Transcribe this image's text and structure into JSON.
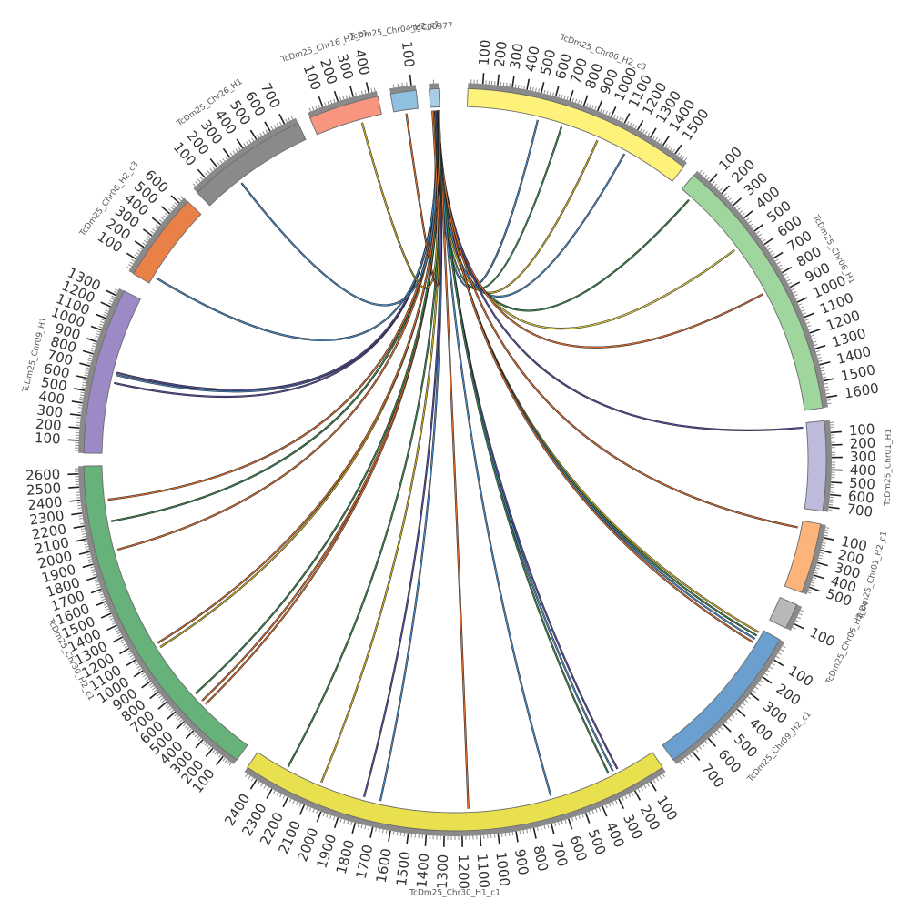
{
  "chromosomes": [
    {
      "id": "chr30_h1",
      "label": "TcDm25_Chr30_H1_c1",
      "length": 2480,
      "color": "#e8e04e",
      "start_deg": 146,
      "end_deg": 214
    },
    {
      "id": "chr30_h2",
      "label": "TcDm25_Chr30_H2_c1",
      "length": 2660,
      "color": "#66b27a",
      "start_deg": 216,
      "end_deg": 269
    },
    {
      "id": "chr09_h1",
      "label": "TcDm25_Chr09_H1",
      "length": 1360,
      "color": "#9c8ac6",
      "start_deg": 271,
      "end_deg": 297
    },
    {
      "id": "chr06_h2",
      "label": "TcDm25_Chr06_H2_c3",
      "length": 650,
      "color": "#e88048",
      "start_deg": 300,
      "end_deg": 314
    },
    {
      "id": "chr26_h1",
      "label": "TcDm25_Chr26_H1",
      "length": 780,
      "color": "#8a8a8a",
      "start_deg": 316,
      "end_deg": 335
    },
    {
      "id": "chr16_h2",
      "label": "TcDm25_Chr16_H2_c1",
      "length": 450,
      "color": "#f7957e",
      "start_deg": 337,
      "end_deg": 348
    },
    {
      "id": "chr04",
      "label": "TcDm25_Chr04_H2_c1",
      "length": 120,
      "color": "#90c0df",
      "start_deg": 350,
      "end_deg": 354
    },
    {
      "id": "ptg",
      "label": "PtgC00377",
      "length": 40,
      "color": "#a8cde4",
      "start_deg": 356,
      "end_deg": 357.5
    },
    {
      "id": "chr06_h2b",
      "label": "TcDm25_Chr06_H2_c3",
      "length": 1600,
      "color": "#fff27a",
      "start_deg": 2,
      "end_deg": 38
    },
    {
      "id": "chr06_h1",
      "label": "TcDm25_Chr06_H1",
      "length": 1660,
      "color": "#9ed69e",
      "start_deg": 40,
      "end_deg": 82
    },
    {
      "id": "chr01_h1",
      "label": "TcDm25_Chr01_H1",
      "length": 740,
      "color": "#bdbbdc",
      "start_deg": 84,
      "end_deg": 98
    },
    {
      "id": "chr01_h2",
      "label": "TcDm25_Chr01_H2_c1",
      "length": 560,
      "color": "#fcb47a",
      "start_deg": 100,
      "end_deg": 111
    },
    {
      "id": "chr06_h2x",
      "label": "TcDm25_Chr06_H2_c4",
      "length": 140,
      "color": "#b8b8b8",
      "start_deg": 113,
      "end_deg": 117
    },
    {
      "id": "chr09_h2",
      "label": "TcDm25_Chr09_H2_c1",
      "length": 800,
      "color": "#6a9fd0",
      "start_deg": 119,
      "end_deg": 144
    }
  ],
  "links": [
    {
      "from": "ptg",
      "fpos": 10,
      "to": "chr06_h2b",
      "tpos": 520,
      "color": "#4a8fcf"
    },
    {
      "from": "ptg",
      "fpos": 14,
      "to": "chr06_h2b",
      "tpos": 700,
      "color": "#3d8a4f"
    },
    {
      "from": "ptg",
      "fpos": 16,
      "to": "chr06_h2b",
      "tpos": 980,
      "color": "#d4b622"
    },
    {
      "from": "ptg",
      "fpos": 18,
      "to": "chr06_h2b",
      "tpos": 1200,
      "color": "#4a8fcf"
    },
    {
      "from": "ptg",
      "fpos": 20,
      "to": "chr06_h1",
      "tpos": 80,
      "color": "#3d8a4f"
    },
    {
      "from": "ptg",
      "fpos": 22,
      "to": "chr06_h1",
      "tpos": 520,
      "color": "#e0d040"
    },
    {
      "from": "ptg",
      "fpos": 24,
      "to": "chr06_h1",
      "tpos": 860,
      "color": "#e07030"
    },
    {
      "from": "ptg",
      "fpos": 26,
      "to": "chr01_h1",
      "tpos": 40,
      "color": "#5a4fa6"
    },
    {
      "from": "ptg",
      "fpos": 27,
      "to": "chr01_h2",
      "tpos": 60,
      "color": "#e07030"
    },
    {
      "from": "ptg",
      "fpos": 28,
      "to": "chr09_h2",
      "tpos": 20,
      "color": "#d4b622"
    },
    {
      "from": "ptg",
      "fpos": 29,
      "to": "chr09_h2",
      "tpos": 40,
      "color": "#3d8a4f"
    },
    {
      "from": "ptg",
      "fpos": 30,
      "to": "chr09_h2",
      "tpos": 60,
      "color": "#4a8fcf"
    },
    {
      "from": "ptg",
      "fpos": 31,
      "to": "chr09_h2",
      "tpos": 80,
      "color": "#e07030"
    },
    {
      "from": "ptg",
      "fpos": 32,
      "to": "chr30_h1",
      "tpos": 230,
      "color": "#5a4fa6"
    },
    {
      "from": "ptg",
      "fpos": 32,
      "to": "chr30_h1",
      "tpos": 260,
      "color": "#4a8fcf"
    },
    {
      "from": "ptg",
      "fpos": 33,
      "to": "chr30_h1",
      "tpos": 290,
      "color": "#3d8a4f"
    },
    {
      "from": "ptg",
      "fpos": 33,
      "to": "chr30_h1",
      "tpos": 660,
      "color": "#4a8fcf"
    },
    {
      "from": "ptg",
      "fpos": 34,
      "to": "chr30_h1",
      "tpos": 1160,
      "color": "#e07030"
    },
    {
      "from": "ptg",
      "fpos": 34,
      "to": "chr30_h1",
      "tpos": 1690,
      "color": "#4a8fcf"
    },
    {
      "from": "ptg",
      "fpos": 35,
      "to": "chr30_h1",
      "tpos": 1790,
      "color": "#5a4fa6"
    },
    {
      "from": "ptg",
      "fpos": 35,
      "to": "chr30_h1",
      "tpos": 2060,
      "color": "#d4b622"
    },
    {
      "from": "ptg",
      "fpos": 36,
      "to": "chr30_h1",
      "tpos": 2280,
      "color": "#3d8a4f"
    },
    {
      "from": "ptg",
      "fpos": 30,
      "to": "chr30_h2",
      "tpos": 480,
      "color": "#e07030"
    },
    {
      "from": "ptg",
      "fpos": 30,
      "to": "chr30_h2",
      "tpos": 520,
      "color": "#e07030"
    },
    {
      "from": "ptg",
      "fpos": 31,
      "to": "chr30_h2",
      "tpos": 600,
      "color": "#3d8a4f"
    },
    {
      "from": "ptg",
      "fpos": 32,
      "to": "chr30_h2",
      "tpos": 1080,
      "color": "#d4b622"
    },
    {
      "from": "ptg",
      "fpos": 33,
      "to": "chr30_h2",
      "tpos": 1120,
      "color": "#e07030"
    },
    {
      "from": "ptg",
      "fpos": 34,
      "to": "chr30_h2",
      "tpos": 1960,
      "color": "#e07030"
    },
    {
      "from": "ptg",
      "fpos": 35,
      "to": "chr30_h2",
      "tpos": 2200,
      "color": "#3d8a4f"
    },
    {
      "from": "ptg",
      "fpos": 36,
      "to": "chr30_h2",
      "tpos": 2380,
      "color": "#e07030"
    },
    {
      "from": "ptg",
      "fpos": 26,
      "to": "chr09_h1",
      "tpos": 610,
      "color": "#5a4fa6"
    },
    {
      "from": "ptg",
      "fpos": 24,
      "to": "chr09_h1",
      "tpos": 680,
      "color": "#4a8fcf"
    },
    {
      "from": "ptg",
      "fpos": 22,
      "to": "chr09_h1",
      "tpos": 700,
      "color": "#5a4fa6"
    },
    {
      "from": "ptg",
      "fpos": 18,
      "to": "chr06_h2",
      "tpos": 60,
      "color": "#4a8fcf"
    },
    {
      "from": "ptg",
      "fpos": 14,
      "to": "chr26_h1",
      "tpos": 260,
      "color": "#4a8fcf"
    },
    {
      "from": "ptg",
      "fpos": 12,
      "to": "chr16_h2",
      "tpos": 310,
      "color": "#d4b622"
    },
    {
      "from": "ptg",
      "fpos": 8,
      "to": "chr04",
      "tpos": 60,
      "color": "#e07030"
    }
  ]
}
